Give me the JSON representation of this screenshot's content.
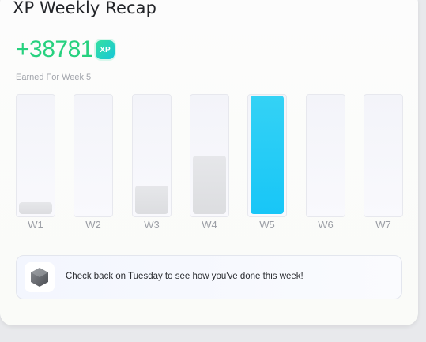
{
  "header": {
    "title": "XP Weekly Recap"
  },
  "summary": {
    "xp_value": "+38781",
    "xp_badge": "XP",
    "earned_label": "Earned For Week 5"
  },
  "weekly_bars": {
    "active_week": "W5",
    "weeks": [
      {
        "label": "W1",
        "fill_fraction": 0.1
      },
      {
        "label": "W2",
        "fill_fraction": 0.0
      },
      {
        "label": "W3",
        "fill_fraction": 0.24
      },
      {
        "label": "W4",
        "fill_fraction": 0.49
      },
      {
        "label": "W5",
        "fill_fraction": 1.0
      },
      {
        "label": "W6",
        "fill_fraction": 0.0
      },
      {
        "label": "W7",
        "fill_fraction": 0.0
      }
    ]
  },
  "notice": {
    "icon": "hexagon-icon",
    "text": "Check back on Tuesday to see how you've done this week!"
  },
  "colors": {
    "xp_green": "#27d17f",
    "active_bar": "#18c6f7",
    "inactive_bar": "#dcdde0"
  }
}
